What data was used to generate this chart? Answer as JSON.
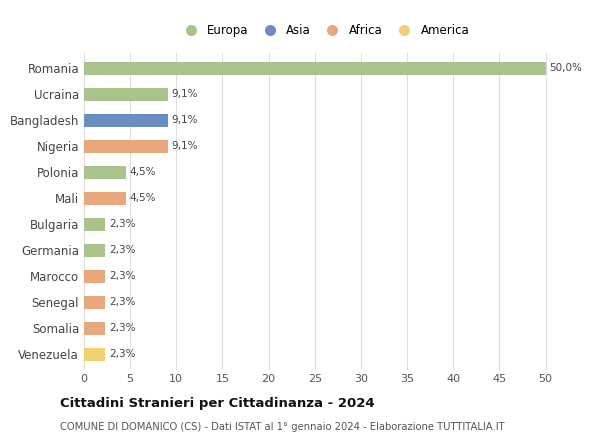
{
  "countries": [
    "Romania",
    "Ucraina",
    "Bangladesh",
    "Nigeria",
    "Polonia",
    "Mali",
    "Bulgaria",
    "Germania",
    "Marocco",
    "Senegal",
    "Somalia",
    "Venezuela"
  ],
  "values": [
    50.0,
    9.1,
    9.1,
    9.1,
    4.5,
    4.5,
    2.3,
    2.3,
    2.3,
    2.3,
    2.3,
    2.3
  ],
  "labels": [
    "50,0%",
    "9,1%",
    "9,1%",
    "9,1%",
    "4,5%",
    "4,5%",
    "2,3%",
    "2,3%",
    "2,3%",
    "2,3%",
    "2,3%",
    "2,3%"
  ],
  "colors": [
    "#a8c48a",
    "#a8c48a",
    "#6b8ec2",
    "#e8a87c",
    "#a8c48a",
    "#e8a87c",
    "#a8c48a",
    "#a8c48a",
    "#e8a87c",
    "#e8a87c",
    "#e8a87c",
    "#f0d070"
  ],
  "continent": [
    "Europa",
    "Europa",
    "Asia",
    "Africa",
    "Europa",
    "Africa",
    "Europa",
    "Europa",
    "Africa",
    "Africa",
    "Africa",
    "America"
  ],
  "legend_labels": [
    "Europa",
    "Asia",
    "Africa",
    "America"
  ],
  "legend_colors": [
    "#a8c48a",
    "#6b8ec2",
    "#e8a87c",
    "#f0d070"
  ],
  "title": "Cittadini Stranieri per Cittadinanza - 2024",
  "subtitle": "COMUNE DI DOMANICO (CS) - Dati ISTAT al 1° gennaio 2024 - Elaborazione TUTTITALIA.IT",
  "xlim": [
    0,
    52
  ],
  "xticks": [
    0,
    5,
    10,
    15,
    20,
    25,
    30,
    35,
    40,
    45,
    50
  ],
  "background_color": "#ffffff",
  "grid_color": "#dddddd"
}
